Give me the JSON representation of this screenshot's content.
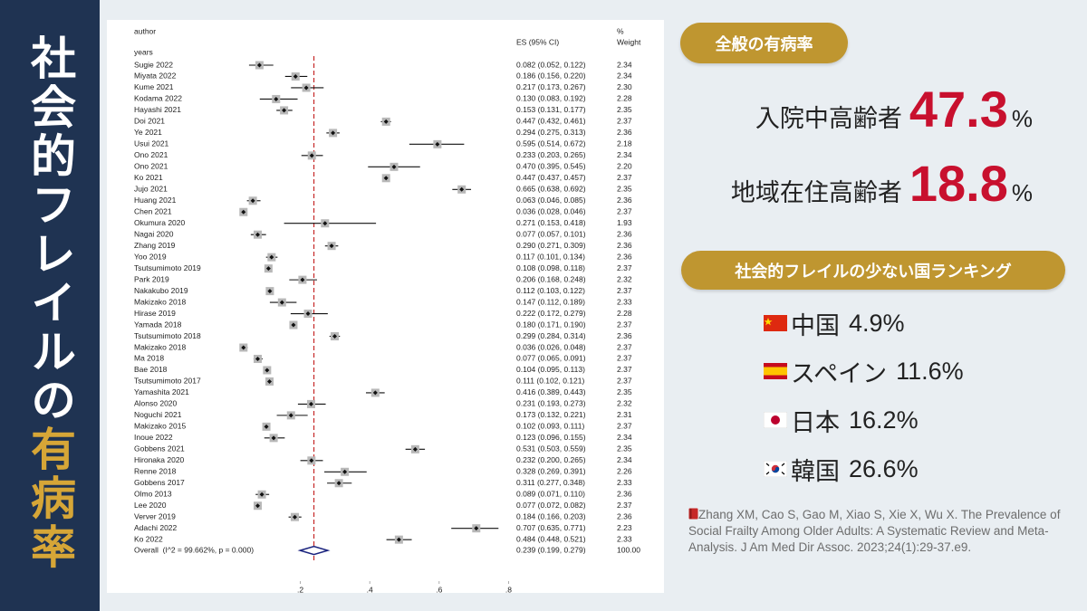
{
  "sidebar": {
    "title_white": "社会的フレイルの",
    "title_gold": "有病率"
  },
  "chart_data": {
    "type": "forest",
    "header_author": "author",
    "header_years": "years",
    "header_es": "ES (95% CI)",
    "header_pct": "%",
    "header_weight": "Weight",
    "studies": [
      {
        "author": "Sugie 2022",
        "es": 0.082,
        "lo": 0.052,
        "hi": 0.122,
        "ci_label": "0.082 (0.052, 0.122)",
        "weight": "2.34"
      },
      {
        "author": "Miyata 2022",
        "es": 0.186,
        "lo": 0.156,
        "hi": 0.22,
        "ci_label": "0.186 (0.156, 0.220)",
        "weight": "2.34"
      },
      {
        "author": "Kume 2021",
        "es": 0.217,
        "lo": 0.173,
        "hi": 0.267,
        "ci_label": "0.217 (0.173, 0.267)",
        "weight": "2.30"
      },
      {
        "author": "Kodama 2022",
        "es": 0.13,
        "lo": 0.083,
        "hi": 0.192,
        "ci_label": "0.130 (0.083, 0.192)",
        "weight": "2.28"
      },
      {
        "author": "Hayashi 2021",
        "es": 0.153,
        "lo": 0.131,
        "hi": 0.177,
        "ci_label": "0.153 (0.131, 0.177)",
        "weight": "2.35"
      },
      {
        "author": "Doi 2021",
        "es": 0.447,
        "lo": 0.432,
        "hi": 0.461,
        "ci_label": "0.447 (0.432, 0.461)",
        "weight": "2.37"
      },
      {
        "author": "Ye 2021",
        "es": 0.294,
        "lo": 0.275,
        "hi": 0.313,
        "ci_label": "0.294 (0.275, 0.313)",
        "weight": "2.36"
      },
      {
        "author": "Usui 2021",
        "es": 0.595,
        "lo": 0.514,
        "hi": 0.672,
        "ci_label": "0.595 (0.514, 0.672)",
        "weight": "2.18"
      },
      {
        "author": "Ono 2021",
        "es": 0.233,
        "lo": 0.203,
        "hi": 0.265,
        "ci_label": "0.233 (0.203, 0.265)",
        "weight": "2.34"
      },
      {
        "author": "Ono 2021",
        "es": 0.47,
        "lo": 0.395,
        "hi": 0.545,
        "ci_label": "0.470 (0.395, 0.545)",
        "weight": "2.20"
      },
      {
        "author": "Ko 2021",
        "es": 0.447,
        "lo": 0.437,
        "hi": 0.457,
        "ci_label": "0.447 (0.437, 0.457)",
        "weight": "2.37"
      },
      {
        "author": "Jujo 2021",
        "es": 0.665,
        "lo": 0.638,
        "hi": 0.692,
        "ci_label": "0.665 (0.638, 0.692)",
        "weight": "2.35"
      },
      {
        "author": "Huang 2021",
        "es": 0.063,
        "lo": 0.046,
        "hi": 0.085,
        "ci_label": "0.063 (0.046, 0.085)",
        "weight": "2.36"
      },
      {
        "author": "Chen 2021",
        "es": 0.036,
        "lo": 0.028,
        "hi": 0.046,
        "ci_label": "0.036 (0.028, 0.046)",
        "weight": "2.37"
      },
      {
        "author": "Okumura 2020",
        "es": 0.271,
        "lo": 0.153,
        "hi": 0.418,
        "ci_label": "0.271 (0.153, 0.418)",
        "weight": "1.93"
      },
      {
        "author": "Nagai 2020",
        "es": 0.077,
        "lo": 0.057,
        "hi": 0.101,
        "ci_label": "0.077 (0.057, 0.101)",
        "weight": "2.36"
      },
      {
        "author": "Zhang 2019",
        "es": 0.29,
        "lo": 0.271,
        "hi": 0.309,
        "ci_label": "0.290 (0.271, 0.309)",
        "weight": "2.36"
      },
      {
        "author": "Yoo 2019",
        "es": 0.117,
        "lo": 0.101,
        "hi": 0.134,
        "ci_label": "0.117 (0.101, 0.134)",
        "weight": "2.36"
      },
      {
        "author": "Tsutsumimoto 2019",
        "es": 0.108,
        "lo": 0.098,
        "hi": 0.118,
        "ci_label": "0.108 (0.098, 0.118)",
        "weight": "2.37"
      },
      {
        "author": "Park 2019",
        "es": 0.206,
        "lo": 0.168,
        "hi": 0.248,
        "ci_label": "0.206 (0.168, 0.248)",
        "weight": "2.32"
      },
      {
        "author": "Nakakubo 2019",
        "es": 0.112,
        "lo": 0.103,
        "hi": 0.122,
        "ci_label": "0.112 (0.103, 0.122)",
        "weight": "2.37"
      },
      {
        "author": "Makizako 2018",
        "es": 0.147,
        "lo": 0.112,
        "hi": 0.189,
        "ci_label": "0.147 (0.112, 0.189)",
        "weight": "2.33"
      },
      {
        "author": "Hirase 2019",
        "es": 0.222,
        "lo": 0.172,
        "hi": 0.279,
        "ci_label": "0.222 (0.172, 0.279)",
        "weight": "2.28"
      },
      {
        "author": "Yamada 2018",
        "es": 0.18,
        "lo": 0.171,
        "hi": 0.19,
        "ci_label": "0.180 (0.171, 0.190)",
        "weight": "2.37"
      },
      {
        "author": "Tsutsumimoto 2018",
        "es": 0.299,
        "lo": 0.284,
        "hi": 0.314,
        "ci_label": "0.299 (0.284, 0.314)",
        "weight": "2.36"
      },
      {
        "author": "Makizako 2018",
        "es": 0.036,
        "lo": 0.026,
        "hi": 0.048,
        "ci_label": "0.036 (0.026, 0.048)",
        "weight": "2.37"
      },
      {
        "author": "Ma 2018",
        "es": 0.077,
        "lo": 0.065,
        "hi": 0.091,
        "ci_label": "0.077 (0.065, 0.091)",
        "weight": "2.37"
      },
      {
        "author": "Bae 2018",
        "es": 0.104,
        "lo": 0.095,
        "hi": 0.113,
        "ci_label": "0.104 (0.095, 0.113)",
        "weight": "2.37"
      },
      {
        "author": "Tsutsumimoto 2017",
        "es": 0.111,
        "lo": 0.102,
        "hi": 0.121,
        "ci_label": "0.111 (0.102, 0.121)",
        "weight": "2.37"
      },
      {
        "author": "Yamashita 2021",
        "es": 0.416,
        "lo": 0.389,
        "hi": 0.443,
        "ci_label": "0.416 (0.389, 0.443)",
        "weight": "2.35"
      },
      {
        "author": "Alonso 2020",
        "es": 0.231,
        "lo": 0.193,
        "hi": 0.273,
        "ci_label": "0.231 (0.193, 0.273)",
        "weight": "2.32"
      },
      {
        "author": "Noguchi 2021",
        "es": 0.173,
        "lo": 0.132,
        "hi": 0.221,
        "ci_label": "0.173 (0.132, 0.221)",
        "weight": "2.31"
      },
      {
        "author": "Makizako 2015",
        "es": 0.102,
        "lo": 0.093,
        "hi": 0.111,
        "ci_label": "0.102 (0.093, 0.111)",
        "weight": "2.37"
      },
      {
        "author": "Inoue 2022",
        "es": 0.123,
        "lo": 0.096,
        "hi": 0.155,
        "ci_label": "0.123 (0.096, 0.155)",
        "weight": "2.34"
      },
      {
        "author": "Gobbens 2021",
        "es": 0.531,
        "lo": 0.503,
        "hi": 0.559,
        "ci_label": "0.531 (0.503, 0.559)",
        "weight": "2.35"
      },
      {
        "author": "Hironaka 2020",
        "es": 0.232,
        "lo": 0.2,
        "hi": 0.265,
        "ci_label": "0.232 (0.200, 0.265)",
        "weight": "2.34"
      },
      {
        "author": "Renne 2018",
        "es": 0.328,
        "lo": 0.269,
        "hi": 0.391,
        "ci_label": "0.328 (0.269, 0.391)",
        "weight": "2.26"
      },
      {
        "author": "Gobbens 2017",
        "es": 0.311,
        "lo": 0.277,
        "hi": 0.348,
        "ci_label": "0.311 (0.277, 0.348)",
        "weight": "2.33"
      },
      {
        "author": "Olmo 2013",
        "es": 0.089,
        "lo": 0.071,
        "hi": 0.11,
        "ci_label": "0.089 (0.071, 0.110)",
        "weight": "2.36"
      },
      {
        "author": "Lee 2020",
        "es": 0.077,
        "lo": 0.072,
        "hi": 0.082,
        "ci_label": "0.077 (0.072, 0.082)",
        "weight": "2.37"
      },
      {
        "author": "Verver 2019",
        "es": 0.184,
        "lo": 0.166,
        "hi": 0.203,
        "ci_label": "0.184 (0.166, 0.203)",
        "weight": "2.36"
      },
      {
        "author": "Adachi 2022",
        "es": 0.707,
        "lo": 0.635,
        "hi": 0.771,
        "ci_label": "0.707 (0.635, 0.771)",
        "weight": "2.23"
      },
      {
        "author": "Ko 2022",
        "es": 0.484,
        "lo": 0.448,
        "hi": 0.521,
        "ci_label": "0.484 (0.448, 0.521)",
        "weight": "2.33"
      }
    ],
    "overall": {
      "author": "Overall  (I^2 = 99.662%, p = 0.000)",
      "es": 0.239,
      "lo": 0.199,
      "hi": 0.279,
      "ci_label": "0.239 (0.199, 0.279)",
      "weight": "100.00"
    },
    "xlim": [
      0,
      0.9
    ],
    "xticks": [
      {
        "value": 0.2,
        "label": ".2"
      },
      {
        "value": 0.4,
        "label": ".4"
      },
      {
        "value": 0.6,
        "label": ".6"
      },
      {
        "value": 0.8,
        "label": ".8"
      }
    ],
    "marker_color": "#b8b8b8",
    "ci_color": "#111111",
    "diamond_color": "#1a237e",
    "reference_color": "#c62828"
  },
  "overall_prevalence": {
    "heading": "全般の有病率",
    "unit": "%",
    "items": [
      {
        "label": "入院中高齢者",
        "value": 47.3
      },
      {
        "label": "地域在住高齢者",
        "value": 18.8
      }
    ]
  },
  "ranking": {
    "heading": "社会的フレイルの少ない国ランキング",
    "unit": "%",
    "items": [
      {
        "country": "中国",
        "value": 4.9
      },
      {
        "country": "スペイン",
        "value": 11.6
      },
      {
        "country": "日本",
        "value": 16.2
      },
      {
        "country": "韓国",
        "value": 26.6
      }
    ]
  },
  "citation": "Zhang XM, Cao S, Gao M, Xiao S, Xie X, Wu X. The Prevalence of Social Frailty Among Older Adults: A Systematic Review and Meta-Analysis. J Am Med Dir Assoc. 2023;24(1):29-37.e9."
}
